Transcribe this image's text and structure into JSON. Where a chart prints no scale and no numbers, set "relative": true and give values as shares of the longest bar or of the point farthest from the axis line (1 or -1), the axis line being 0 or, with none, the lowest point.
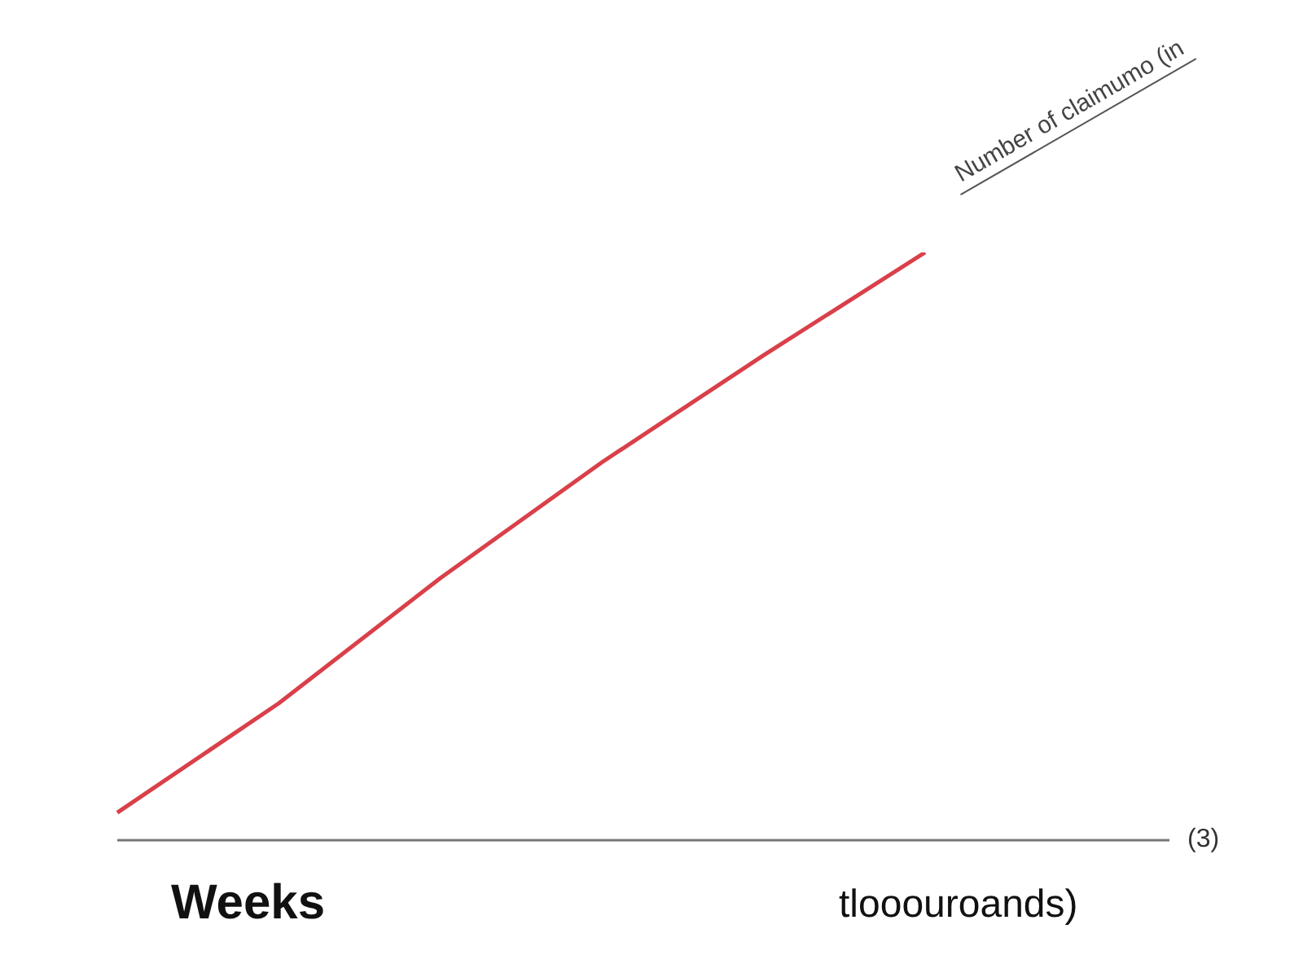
{
  "chart_data": {
    "type": "line",
    "relative": true,
    "categories": [
      null,
      null,
      null,
      null,
      null,
      null
    ],
    "series": [
      {
        "color": "#d9404a",
        "values": [
          0.047,
          0.233,
          0.446,
          0.643,
          0.825,
          1
        ]
      }
    ],
    "xlabel": "Weeks",
    "ylabel": "Number of claimumo (in",
    "annotations": [
      "(3)",
      "tlooouroands)"
    ],
    "legend": false,
    "marker": "none",
    "line_style": "solid"
  }
}
